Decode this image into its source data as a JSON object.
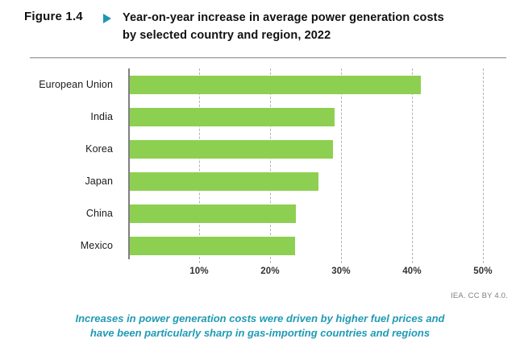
{
  "figure": {
    "label": "Figure 1.4",
    "title_line1": "Year-on-year increase in average power generation costs",
    "title_line2": "by selected country and region, 2022"
  },
  "chart_data": {
    "type": "bar",
    "orientation": "horizontal",
    "title": "Year-on-year increase in average power generation costs by selected country and region, 2022",
    "categories": [
      "European Union",
      "India",
      "Korea",
      "Japan",
      "China",
      "Mexico"
    ],
    "values": [
      41.1,
      29.0,
      28.8,
      26.7,
      23.5,
      23.4
    ],
    "unit": "%",
    "xlabel": "",
    "ylabel": "",
    "xlim": [
      0,
      50
    ],
    "x_ticks": [
      10,
      20,
      30,
      40,
      50
    ],
    "x_tick_labels": [
      "10%",
      "20%",
      "30%",
      "40%",
      "50%"
    ],
    "grid": "vertical-dashed",
    "legend": "none",
    "bar_color": "#8dd051",
    "axis_color": "#808080"
  },
  "attribution": "IEA. CC BY 4.0.",
  "caption": {
    "line1": "Increases in power generation costs were driven by higher fuel prices and",
    "line2": "have been particularly sharp in gas-importing countries and regions",
    "color": "#1f9ab4"
  },
  "icons": {
    "figure_arrow": "right-triangle",
    "figure_arrow_color": "#1d96b5"
  }
}
